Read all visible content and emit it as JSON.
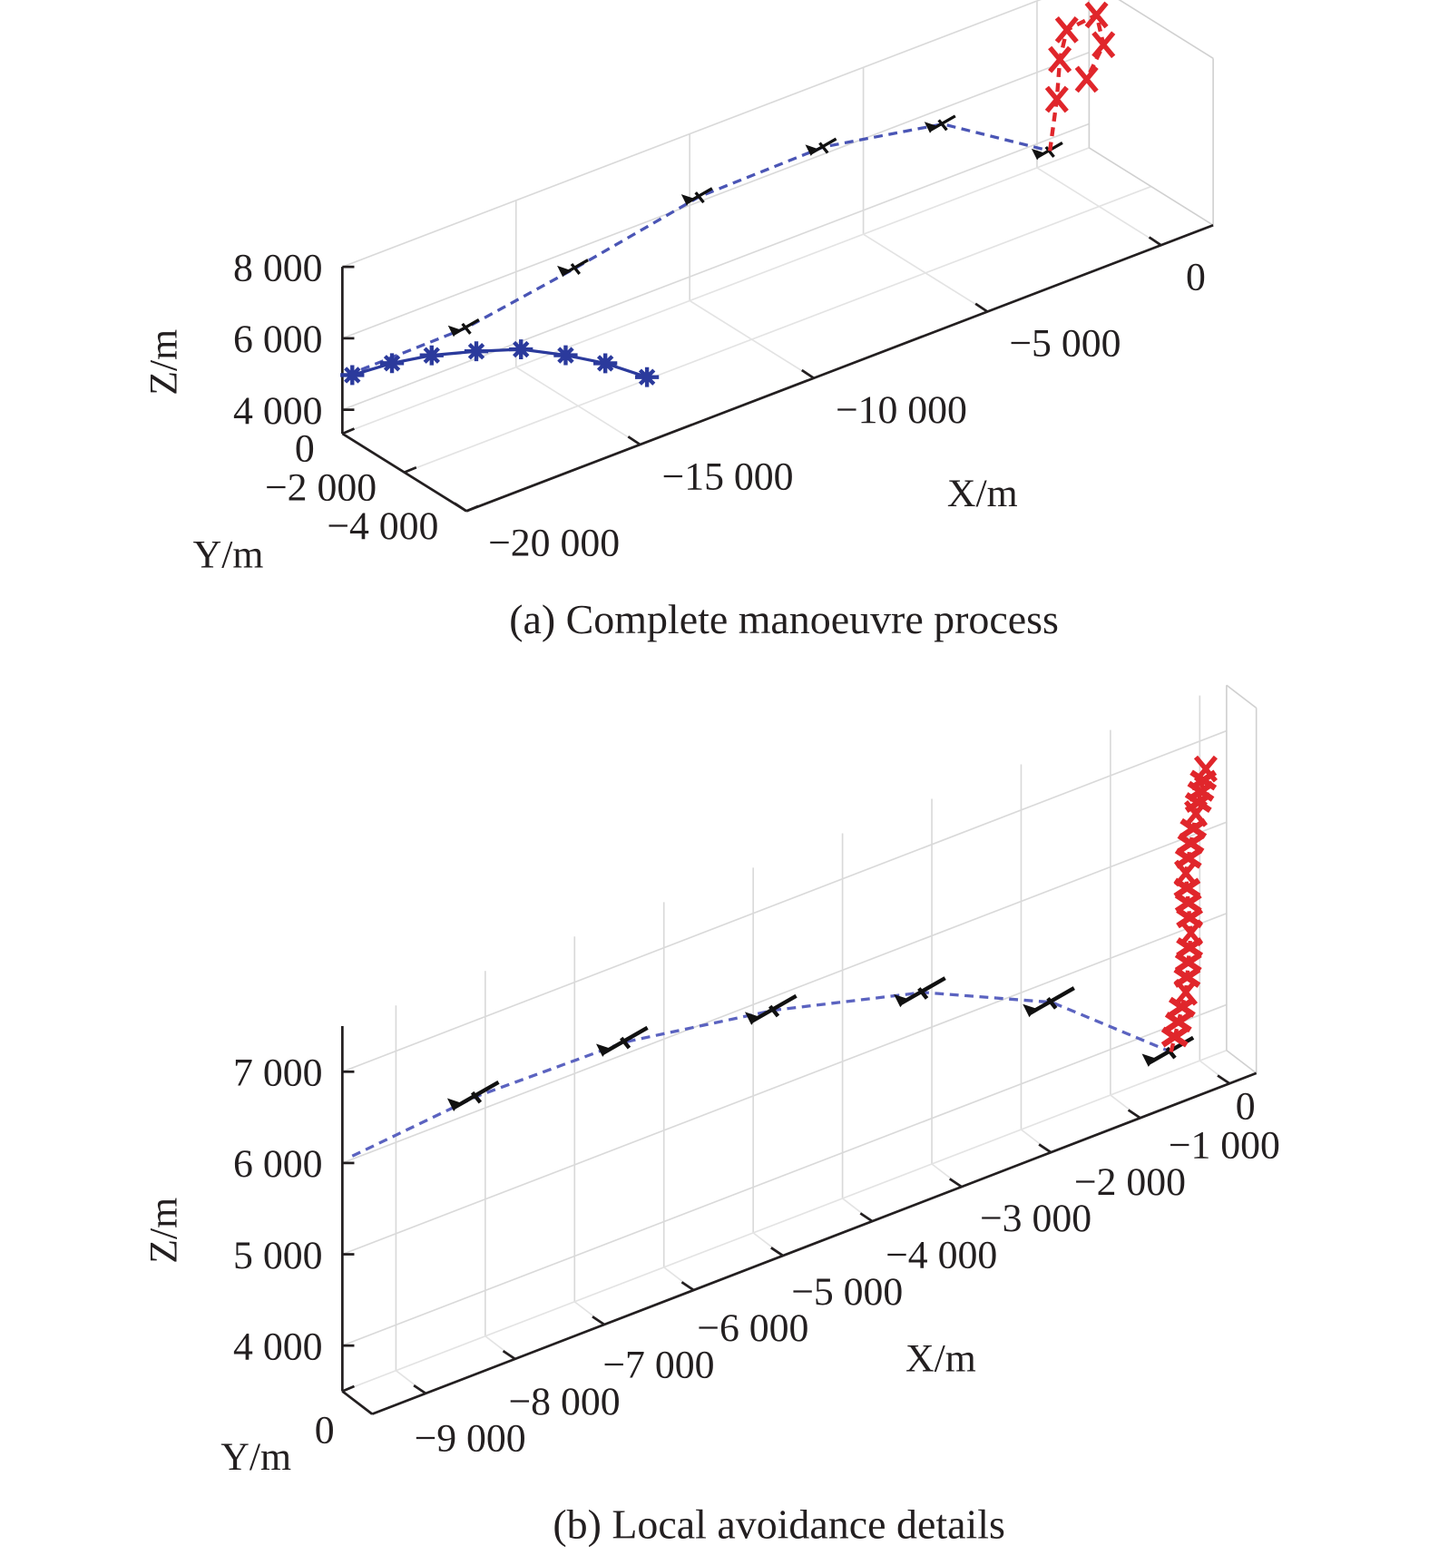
{
  "chart_data": [
    {
      "type": "line3d",
      "title": "(a) Complete manoeuvre process",
      "xlabel": "X/m",
      "ylabel": "Y/m",
      "zlabel": "Z/m",
      "xlim": [
        -20000,
        1500
      ],
      "ylim": [
        -4000,
        0
      ],
      "zlim": [
        3330,
        8000
      ],
      "grid": true,
      "xticks": [
        -20000,
        -15000,
        -10000,
        -5000,
        0
      ],
      "xtick_labels": [
        "−20 000",
        "−15 000",
        "−10 000",
        "−5 000",
        "0"
      ],
      "yticks": [
        0,
        -2000,
        -4000
      ],
      "ytick_labels": [
        "0",
        "−2 000",
        "−4 000"
      ],
      "zticks": [
        4000,
        6000,
        8000
      ],
      "ztick_labels": [
        "4 000",
        "6 000",
        "8 000"
      ],
      "series": [
        {
          "color": "#4a55b5",
          "style": "dashed",
          "marker": "aircraft-black",
          "points": [
            [
              -19857,
              0,
              4915
            ],
            [
              -16429,
              0,
              4966
            ],
            [
              -13286,
              0,
              5469
            ],
            [
              -9714,
              0,
              6141
            ],
            [
              -6143,
              0,
              6200
            ],
            [
              -2714,
              0,
              5563
            ],
            [
              371,
              0,
              3663
            ]
          ]
        },
        {
          "color": "#2b3a9c",
          "style": "solid",
          "marker": "star",
          "points": [
            [
              -19714,
              0,
              4863
            ],
            [
              -18571,
              0,
              4772
            ],
            [
              -17429,
              0,
              4566
            ],
            [
              -16143,
              0,
              4200
            ],
            [
              -14857,
              0,
              3777
            ],
            [
              -13571,
              0,
              3133
            ],
            [
              -12429,
              0,
              2483
            ],
            [
              -11229,
              0,
              1649
            ]
          ]
        },
        {
          "color": "#e0262b",
          "style": "dashed",
          "marker": "cross",
          "points": [
            [
              371,
              0,
              3663
            ],
            [
              571,
              0,
              5033
            ],
            [
              657,
              0,
              6113
            ],
            [
              857,
              0,
              6872
            ],
            [
              1714,
              0,
              6969
            ],
            [
              1914,
              0,
              6063
            ],
            [
              1429,
              0,
              5274
            ]
          ]
        }
      ]
    },
    {
      "type": "line3d",
      "title": "(b) Local avoidance details",
      "xlabel": "X/m",
      "ylabel": "Y/m",
      "zlabel": "Z/m",
      "xlim": [
        -9600,
        300
      ],
      "ylim": [
        -1000,
        0
      ],
      "zlim": [
        3500,
        7500
      ],
      "grid": true,
      "xticks": [
        -9000,
        -8000,
        -7000,
        -6000,
        -5000,
        -4000,
        -3000,
        -2000,
        -1000,
        0
      ],
      "xtick_labels": [
        "−9 000",
        "−8 000",
        "−7 000",
        "−6 000",
        "−5 000",
        "−4 000",
        "−3 000",
        "−2 000",
        "−1 000",
        "0"
      ],
      "yticks": [
        0
      ],
      "ytick_labels": [
        "0"
      ],
      "zticks": [
        4000,
        5000,
        6000,
        7000
      ],
      "ztick_labels": [
        "4 000",
        "5 000",
        "6 000",
        "7 000"
      ],
      "series": [
        {
          "color": "#5b63c0",
          "style": "dashed",
          "marker": "aircraft-black",
          "points": [
            [
              -9489,
              0,
              6034
            ],
            [
              -8100,
              0,
              6163
            ],
            [
              -6433,
              0,
              6131
            ],
            [
              -4767,
              0,
              5851
            ],
            [
              -3100,
              0,
              5417
            ],
            [
              -1656,
              0,
              4764
            ],
            [
              -322,
              0,
              3717
            ]
          ]
        },
        {
          "color": "#e0262b",
          "style": "dashed",
          "marker": "cross",
          "points": [
            [
              -322,
              0,
              3717
            ],
            [
              -156,
              0,
              4308
            ],
            [
              -100,
              0,
              4938
            ],
            [
              -156,
              0,
              5612
            ],
            [
              -44,
              0,
              6222
            ],
            [
              67,
              0,
              6670
            ]
          ]
        }
      ]
    }
  ]
}
